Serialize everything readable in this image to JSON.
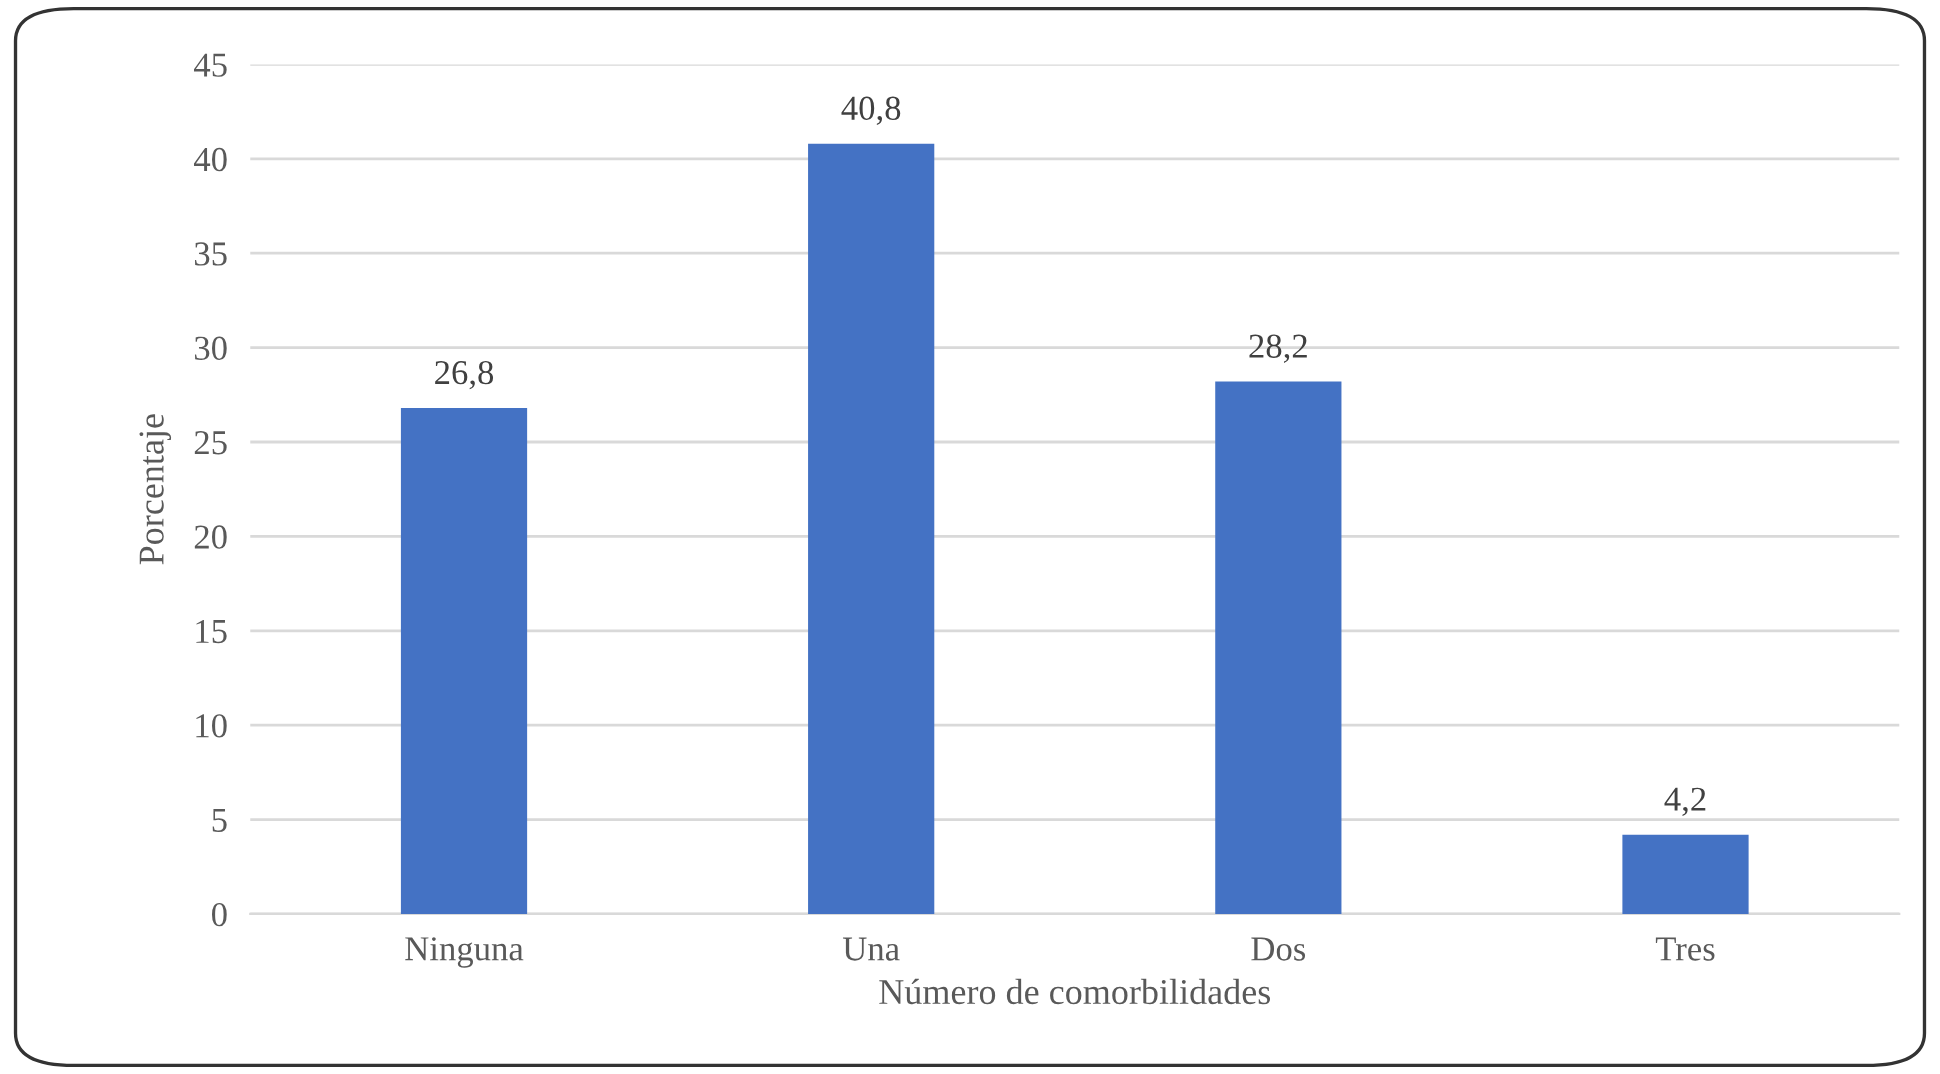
{
  "chart_data": {
    "type": "bar",
    "xlabel": "Número de comorbilidades",
    "ylabel": "Porcentaje",
    "categories": [
      "Ninguna",
      "Una",
      "Dos",
      "Tres"
    ],
    "values": [
      26.8,
      40.8,
      28.2,
      4.2
    ],
    "value_labels": [
      "26,8",
      "40,8",
      "28,2",
      "4,2"
    ],
    "color": "#4472c4",
    "ylim": [
      0,
      45
    ],
    "yticks": [
      0,
      5,
      10,
      15,
      20,
      25,
      30,
      35,
      40,
      45
    ],
    "grid": "y",
    "legend": false
  }
}
